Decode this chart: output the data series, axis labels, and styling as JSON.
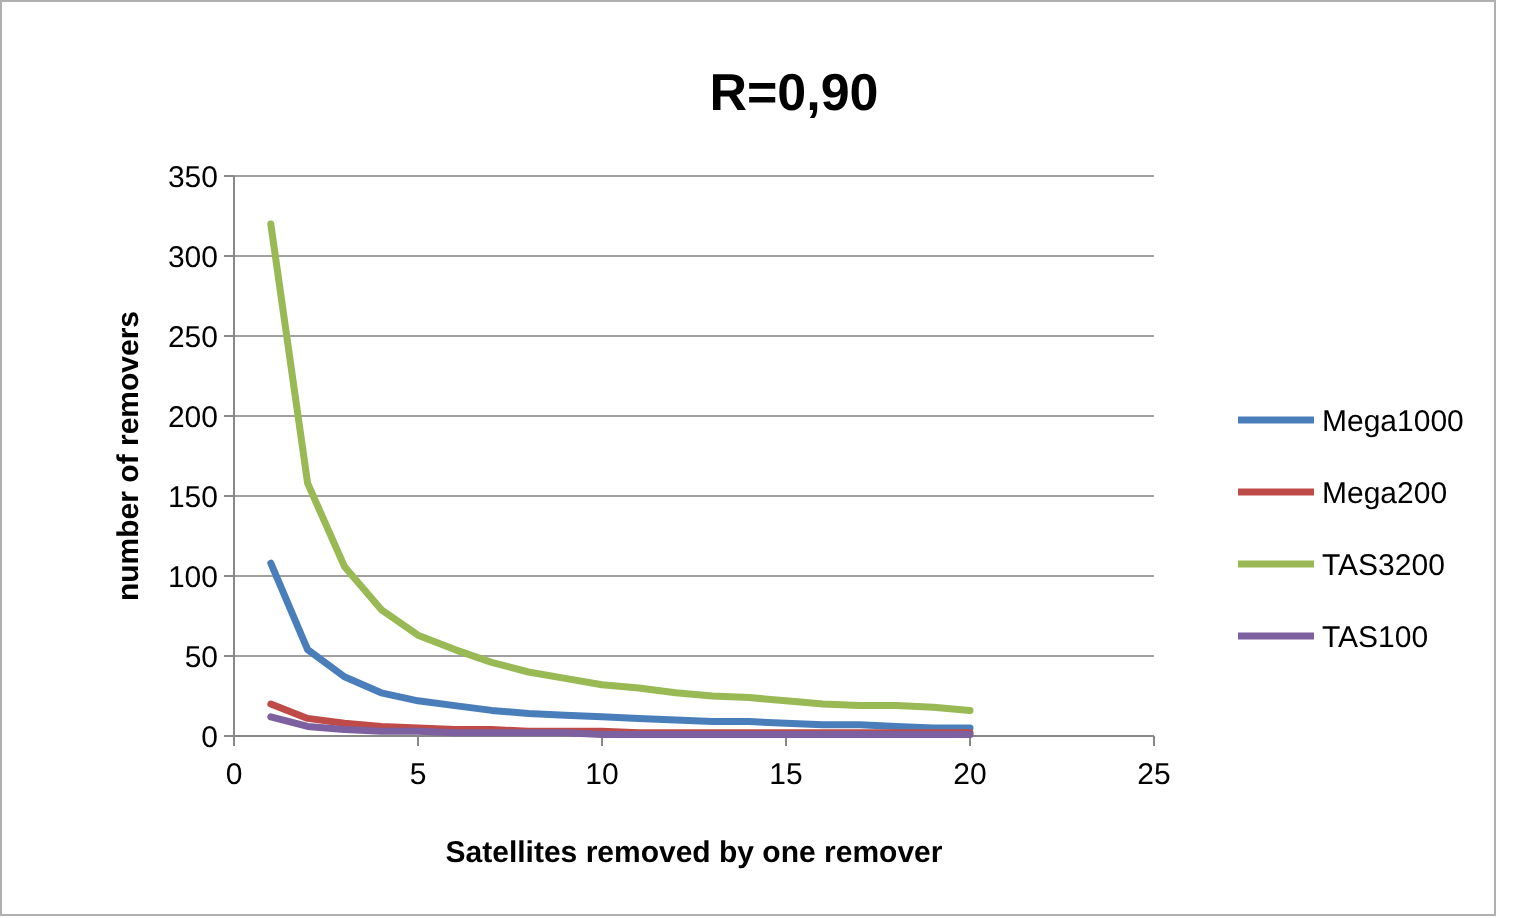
{
  "chart_data": {
    "type": "line",
    "title": "R=0,90",
    "xlabel": "Satellites removed by one remover",
    "ylabel": "number of removers",
    "x": [
      1,
      2,
      3,
      4,
      5,
      6,
      7,
      8,
      9,
      10,
      11,
      12,
      13,
      14,
      15,
      16,
      17,
      18,
      19,
      20
    ],
    "series": [
      {
        "name": "Mega1000",
        "color": "#4a7ebb",
        "values": [
          108,
          54,
          37,
          27,
          22,
          19,
          16,
          14,
          13,
          12,
          11,
          10,
          9,
          9,
          8,
          7,
          7,
          6,
          5,
          5
        ]
      },
      {
        "name": "Mega200",
        "color": "#be4b48",
        "values": [
          20,
          11,
          8,
          6,
          5,
          4,
          4,
          3,
          3,
          3,
          2,
          2,
          2,
          2,
          2,
          2,
          2,
          2,
          2,
          2
        ]
      },
      {
        "name": "TAS3200",
        "color": "#98b954",
        "values": [
          320,
          158,
          106,
          79,
          63,
          54,
          46,
          40,
          36,
          32,
          30,
          27,
          25,
          24,
          22,
          20,
          19,
          19,
          18,
          16
        ]
      },
      {
        "name": "TAS100",
        "color": "#7d60a0",
        "values": [
          12,
          6,
          4,
          3,
          3,
          2,
          2,
          2,
          2,
          1,
          1,
          1,
          1,
          1,
          1,
          1,
          1,
          1,
          1,
          1
        ]
      }
    ],
    "xlim": [
      0,
      25
    ],
    "xticks": [
      0,
      5,
      10,
      15,
      20,
      25
    ],
    "ylim": [
      0,
      350
    ],
    "yticks": [
      0,
      50,
      100,
      150,
      200,
      250,
      300,
      350
    ],
    "grid": "y",
    "legend": "right",
    "marker": "none",
    "line_style": "solid"
  }
}
